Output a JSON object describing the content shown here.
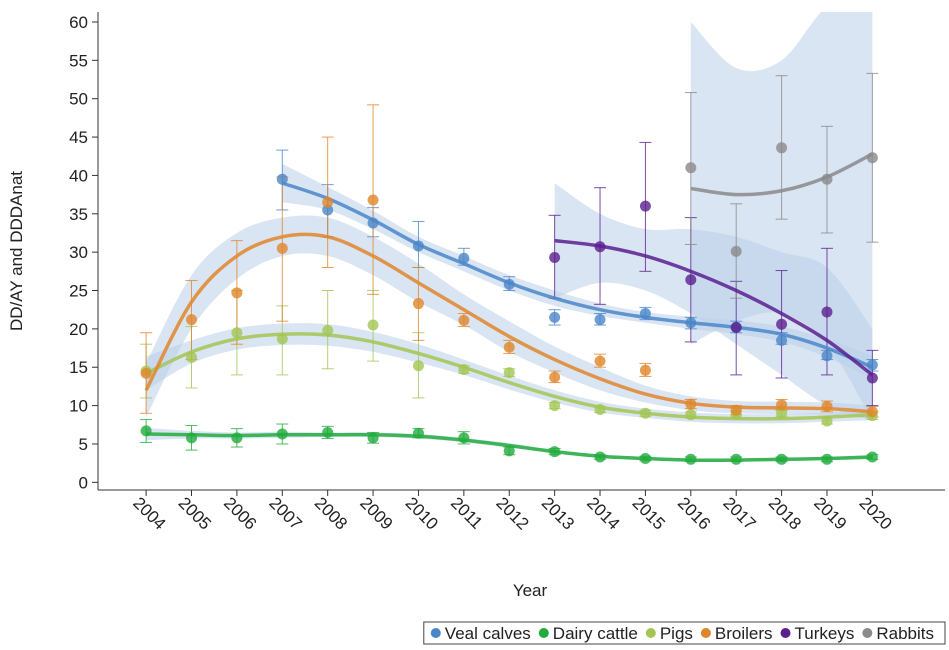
{
  "chart_data": {
    "type": "scatter-fit",
    "x_label": "Year",
    "y_label": "DD/AY and DDDAnat",
    "x": [
      2004,
      2005,
      2006,
      2007,
      2008,
      2009,
      2010,
      2011,
      2012,
      2013,
      2014,
      2015,
      2016,
      2017,
      2018,
      2019,
      2020
    ],
    "xlim": [
      2002.94,
      2021.6
    ],
    "xticks": [
      2004,
      2005,
      2006,
      2007,
      2008,
      2009,
      2010,
      2011,
      2012,
      2013,
      2014,
      2015,
      2016,
      2017,
      2018,
      2019,
      2020
    ],
    "ylim": [
      -1,
      61.3
    ],
    "yticks": [
      0,
      5,
      10,
      15,
      20,
      25,
      30,
      35,
      40,
      45,
      50,
      55,
      60
    ],
    "band_color": "#b9d0ea",
    "legend": "bottom",
    "series": [
      {
        "name": "Veal calves",
        "color": "#4a86c8",
        "values": [
          null,
          null,
          null,
          39.5,
          35.5,
          33.8,
          30.8,
          29.2,
          25.8,
          21.5,
          21.2,
          22.0,
          20.8,
          20.2,
          18.5,
          16.5,
          15.3
        ],
        "lower": [
          null,
          null,
          null,
          35.5,
          32,
          32,
          28,
          28.3,
          25,
          20.5,
          20.5,
          21.2,
          20,
          19.5,
          18,
          16,
          14.5
        ],
        "upper": [
          null,
          null,
          null,
          43.3,
          38.8,
          35.8,
          34,
          30.5,
          26.8,
          22.5,
          22,
          22.8,
          21.5,
          21,
          19.5,
          17.2,
          16
        ],
        "fit": [
          null,
          null,
          null,
          39,
          37,
          34.2,
          31,
          28.5,
          26,
          24,
          22.5,
          21.5,
          20.8,
          20.2,
          19.3,
          17.5,
          15
        ],
        "fit_lower": [
          null,
          null,
          null,
          36.5,
          35.5,
          33,
          30,
          27.5,
          25,
          23,
          21.7,
          20.8,
          20,
          19.3,
          18.3,
          16.3,
          13.5
        ],
        "fit_upper": [
          null,
          null,
          null,
          41.5,
          38.5,
          35.4,
          32,
          29.5,
          27,
          25,
          23.3,
          22.2,
          21.6,
          21.1,
          20.3,
          18.7,
          16.5
        ]
      },
      {
        "name": "Dairy cattle",
        "color": "#22ab3c",
        "values": [
          6.7,
          5.8,
          5.8,
          6.3,
          6.5,
          5.8,
          6.4,
          5.8,
          4.1,
          4.0,
          3.3,
          3.1,
          3.0,
          3.0,
          3.0,
          3.0,
          3.3
        ],
        "lower": [
          5.2,
          4.2,
          4.6,
          5.0,
          5.7,
          5.1,
          5.8,
          5.0,
          3.6,
          3.6,
          3.0,
          2.8,
          2.7,
          2.7,
          2.7,
          2.7,
          3.0
        ],
        "upper": [
          8.2,
          7.4,
          7.0,
          7.6,
          7.3,
          6.5,
          7.0,
          6.6,
          4.6,
          4.4,
          3.6,
          3.4,
          3.3,
          3.3,
          3.3,
          3.3,
          3.6
        ],
        "fit": [
          6.3,
          6.2,
          6.1,
          6.2,
          6.2,
          6.2,
          6.0,
          5.5,
          4.8,
          4.0,
          3.4,
          3.1,
          2.9,
          2.9,
          3.0,
          3.1,
          3.3
        ],
        "fit_lower": [
          5.5,
          5.7,
          5.7,
          5.8,
          5.9,
          5.9,
          5.7,
          5.2,
          4.5,
          3.8,
          3.2,
          2.9,
          2.7,
          2.7,
          2.8,
          2.9,
          3.0
        ],
        "fit_upper": [
          7.1,
          6.7,
          6.5,
          6.6,
          6.5,
          6.5,
          6.3,
          5.8,
          5.1,
          4.2,
          3.6,
          3.3,
          3.1,
          3.1,
          3.2,
          3.3,
          3.6
        ]
      },
      {
        "name": "Pigs",
        "color": "#a3c653",
        "values": [
          14.5,
          16.3,
          19.5,
          18.7,
          19.8,
          20.5,
          15.2,
          14.7,
          14.3,
          10.0,
          9.5,
          9.0,
          8.8,
          8.9,
          9.0,
          8.0,
          8.7
        ],
        "lower": [
          11,
          12.3,
          14,
          14,
          14.8,
          15.8,
          11,
          14.2,
          13.8,
          9.6,
          9.1,
          8.6,
          8.4,
          8.5,
          8.6,
          7.6,
          8.2
        ],
        "upper": [
          18,
          20.3,
          25,
          23,
          25,
          25,
          19.5,
          15.2,
          14.8,
          10.4,
          9.9,
          9.4,
          9.2,
          9.3,
          9.4,
          8.4,
          9.2
        ],
        "fit": [
          14.2,
          17.0,
          18.7,
          19.3,
          19.2,
          18.3,
          16.8,
          15.0,
          13.0,
          11.2,
          9.8,
          9.0,
          8.5,
          8.3,
          8.3,
          8.5,
          8.8
        ],
        "fit_lower": [
          12,
          15.5,
          17.3,
          17.9,
          17.8,
          17,
          15.6,
          14,
          12.1,
          10.4,
          9.1,
          8.4,
          7.9,
          7.7,
          7.7,
          7.9,
          8.1
        ],
        "fit_upper": [
          16.4,
          18.5,
          20.1,
          20.7,
          20.6,
          19.6,
          18,
          16,
          13.9,
          12,
          10.5,
          9.6,
          9.1,
          8.9,
          8.9,
          9.1,
          9.5
        ]
      },
      {
        "name": "Broilers",
        "color": "#e0862a",
        "values": [
          14.2,
          21.2,
          24.7,
          30.5,
          36.5,
          36.8,
          23.3,
          21.1,
          17.6,
          13.7,
          15.8,
          14.6,
          10.2,
          9.4,
          10.1,
          9.9,
          9.2
        ],
        "lower": [
          9,
          16,
          18,
          21,
          28,
          24.5,
          18.5,
          20.3,
          16.8,
          13,
          15,
          13.8,
          9.6,
          8.8,
          9.4,
          9.2,
          8.5
        ],
        "upper": [
          19.5,
          26.3,
          31.5,
          39.8,
          45,
          49.2,
          28,
          22,
          18.5,
          14.5,
          16.7,
          15.5,
          10.8,
          10,
          10.8,
          10.6,
          9.9
        ],
        "fit": [
          12,
          23.5,
          29.5,
          32,
          32,
          29.5,
          26,
          22.5,
          19,
          16,
          13.5,
          11.5,
          10.3,
          9.8,
          9.7,
          9.6,
          9.2
        ],
        "fit_lower": [
          8.5,
          20,
          26.5,
          29.5,
          29.5,
          27,
          23.5,
          20.5,
          17,
          14.3,
          12,
          10.4,
          9.4,
          9,
          8.9,
          8.8,
          8.4
        ],
        "fit_upper": [
          15.5,
          27,
          32.5,
          34.5,
          34.5,
          32,
          28.5,
          24.5,
          21,
          17.7,
          15,
          12.6,
          11.2,
          10.6,
          10.5,
          10.4,
          10
        ]
      },
      {
        "name": "Turkeys",
        "color": "#5b1f8f",
        "values": [
          null,
          null,
          null,
          null,
          null,
          null,
          null,
          null,
          null,
          29.3,
          30.7,
          36.0,
          26.4,
          20.2,
          20.6,
          22.2,
          13.6
        ],
        "lower": [
          null,
          null,
          null,
          null,
          null,
          null,
          null,
          null,
          null,
          24,
          23.2,
          27.5,
          18.3,
          14,
          13.6,
          14,
          10
        ],
        "upper": [
          null,
          null,
          null,
          null,
          null,
          null,
          null,
          null,
          null,
          34.8,
          38.4,
          44.3,
          34.5,
          26.2,
          27.6,
          30.5,
          17.2
        ],
        "fit": [
          null,
          null,
          null,
          null,
          null,
          null,
          null,
          null,
          null,
          31.5,
          30.8,
          29.5,
          27.5,
          25,
          22,
          18.5,
          14
        ],
        "fit_lower": [
          null,
          null,
          null,
          null,
          null,
          null,
          null,
          null,
          null,
          24,
          26,
          25,
          22,
          18,
          14,
          10,
          8
        ],
        "fit_upper": [
          null,
          null,
          null,
          null,
          null,
          null,
          null,
          null,
          null,
          39,
          35,
          33,
          33,
          32,
          30,
          28,
          20
        ]
      },
      {
        "name": "Rabbits",
        "color": "#8a8a8a",
        "values": [
          null,
          null,
          null,
          null,
          null,
          null,
          null,
          null,
          null,
          null,
          null,
          null,
          41.0,
          30.1,
          43.6,
          39.5,
          42.3
        ],
        "lower": [
          null,
          null,
          null,
          null,
          null,
          null,
          null,
          null,
          null,
          null,
          null,
          null,
          31,
          24,
          34.3,
          32.5,
          31.3
        ],
        "upper": [
          null,
          null,
          null,
          null,
          null,
          null,
          null,
          null,
          null,
          null,
          null,
          null,
          50.8,
          36.3,
          53,
          46.4,
          53.3
        ],
        "fit": [
          null,
          null,
          null,
          null,
          null,
          null,
          null,
          null,
          null,
          null,
          null,
          null,
          38.3,
          37.5,
          38,
          39.8,
          42.8
        ],
        "fit_lower": [
          null,
          null,
          null,
          null,
          null,
          null,
          null,
          null,
          null,
          null,
          null,
          null,
          18,
          21,
          22,
          18,
          8
        ],
        "fit_upper": [
          null,
          null,
          null,
          null,
          null,
          null,
          null,
          null,
          null,
          null,
          null,
          null,
          60,
          54,
          55,
          62,
          64
        ]
      }
    ]
  }
}
